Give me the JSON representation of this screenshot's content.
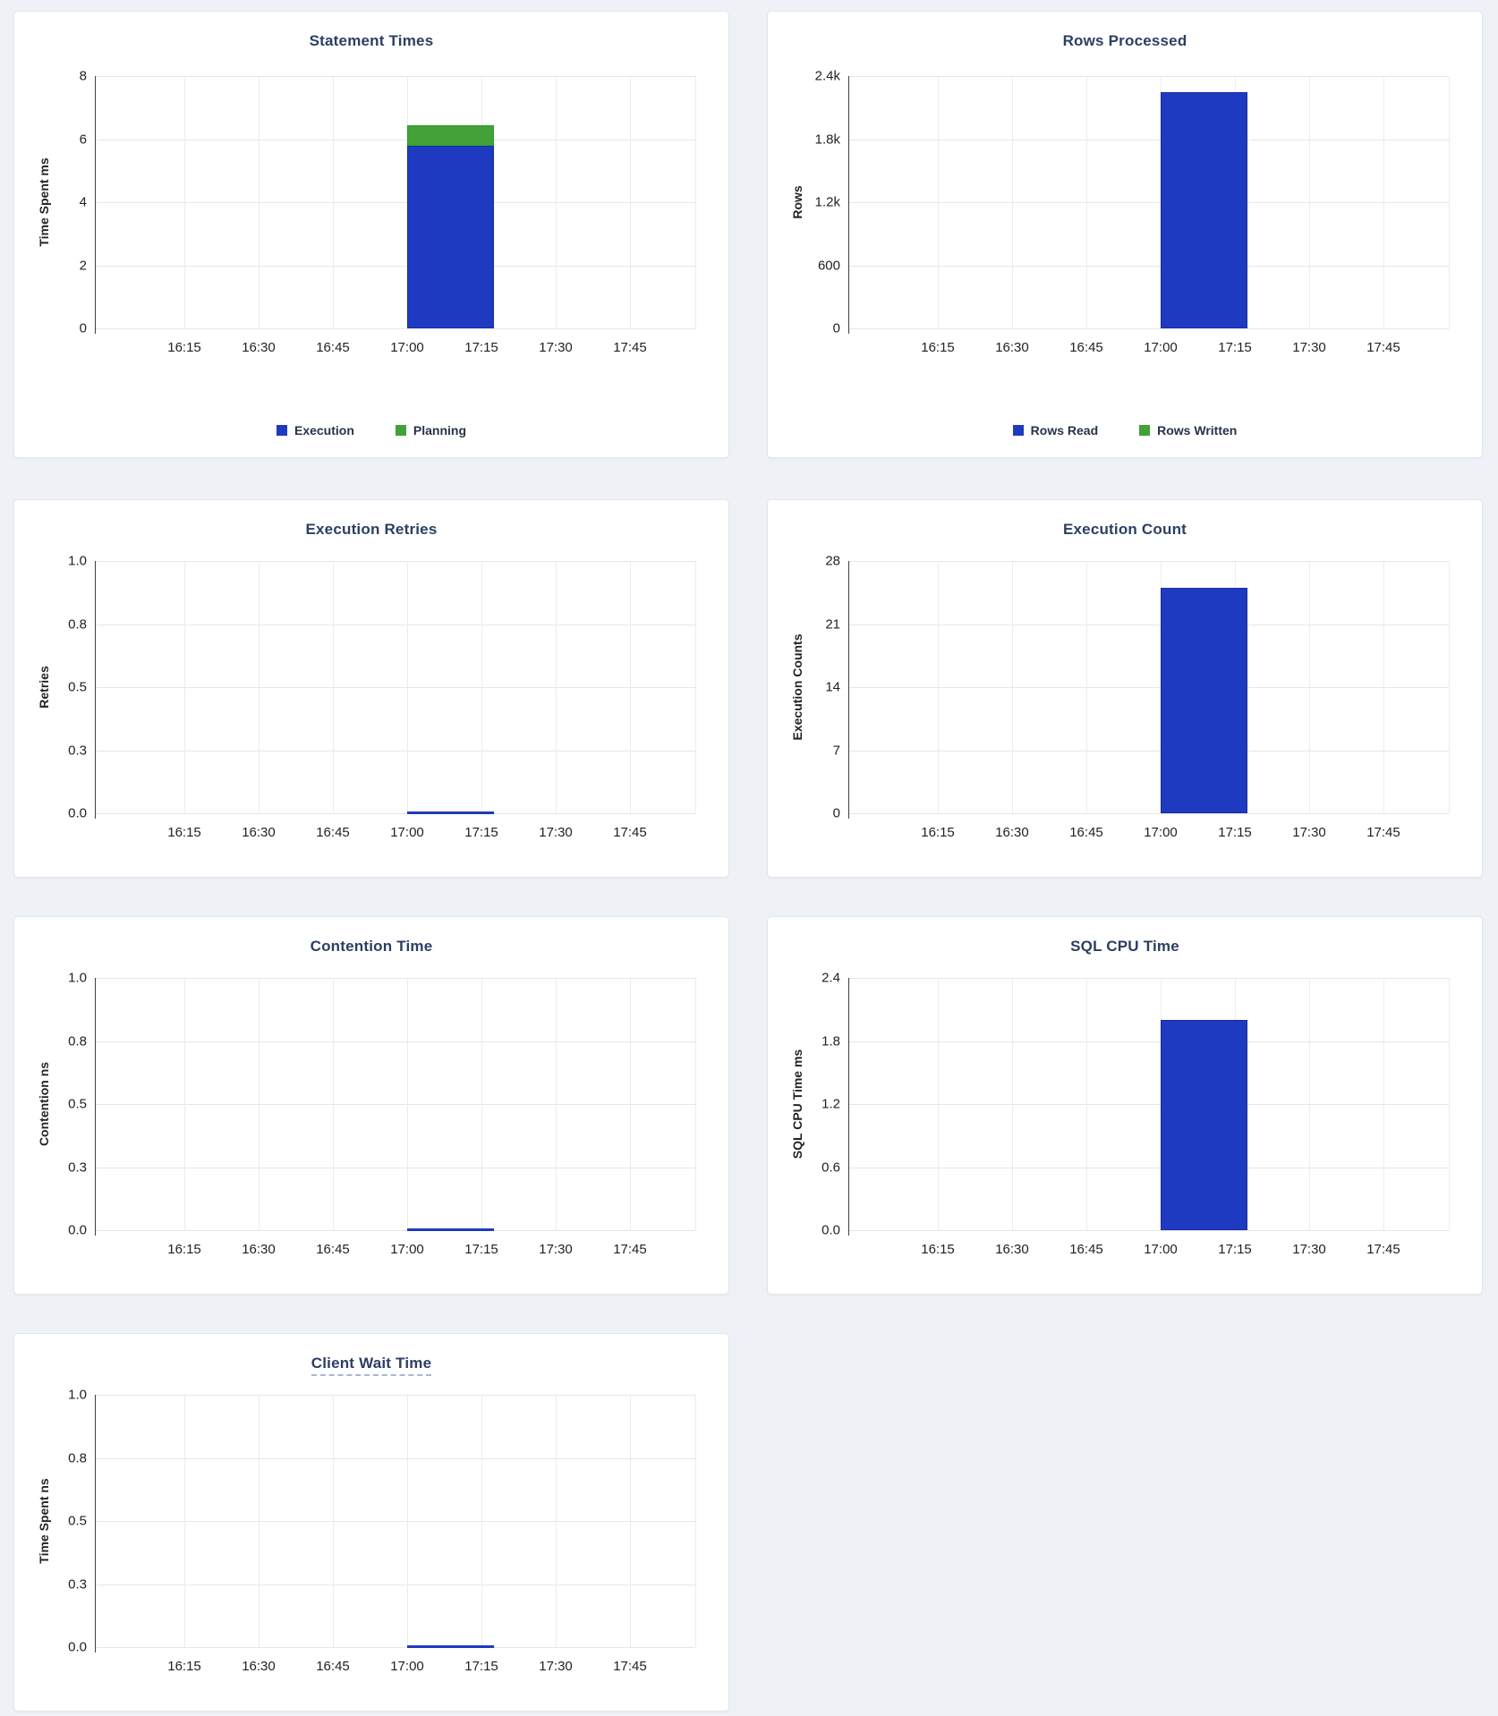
{
  "colors": {
    "page_background": "#eef2f6",
    "bar_blue": "#1e3ac1",
    "bar_blue_stroke": "#162f9c",
    "bar_green": "#42a139",
    "bar_green_stroke": "#2f9a2e",
    "title_text": "#2c3e63",
    "title_underline": "#a9b7d2",
    "tick_text": "#212226",
    "gridline": "#e7e7e7",
    "axis_line": "#3f3f3f"
  },
  "x_axis": {
    "labels": [
      "16:15",
      "16:30",
      "16:45",
      "17:00",
      "17:15",
      "17:30",
      "17:45"
    ]
  },
  "charts": [
    {
      "title": "Statement Times",
      "y_label": "Time Spent ms",
      "y_max": 8,
      "y_ticks": [
        "8",
        "6",
        "4",
        "2",
        "0"
      ],
      "legend": [
        {
          "label": "Execution",
          "color": "blue"
        },
        {
          "label": "Planning",
          "color": "green"
        }
      ],
      "bars": [
        {
          "name": "Execution",
          "color": "blue",
          "value": 5.8
        },
        {
          "name": "Planning",
          "color": "green",
          "value": 0.65
        }
      ]
    },
    {
      "title": "Rows Processed",
      "y_label": "Rows",
      "y_max": 2400,
      "y_ticks": [
        "2.4k",
        "1.8k",
        "1.2k",
        "600",
        "0"
      ],
      "legend": [
        {
          "label": "Rows Read",
          "color": "blue"
        },
        {
          "label": "Rows Written",
          "color": "green"
        }
      ],
      "bars": [
        {
          "name": "Rows Read",
          "color": "blue",
          "value": 2250
        },
        {
          "name": "Rows Written",
          "color": "green",
          "value": 0
        }
      ]
    },
    {
      "title": "Execution Retries",
      "y_label": "Retries",
      "y_max": 1,
      "y_ticks": [
        "1.0",
        "0.8",
        "0.5",
        "0.3",
        "0.0"
      ],
      "legend": [],
      "bars": [
        {
          "name": "Retries",
          "color": "blue",
          "value": 0
        }
      ]
    },
    {
      "title": "Execution Count",
      "y_label": "Execution Counts",
      "y_max": 28,
      "y_ticks": [
        "28",
        "21",
        "14",
        "7",
        "0"
      ],
      "legend": [],
      "bars": [
        {
          "name": "Execution Count",
          "color": "blue",
          "value": 25
        }
      ]
    },
    {
      "title": "Contention Time",
      "y_label": "Contention ns",
      "y_max": 1,
      "y_ticks": [
        "1.0",
        "0.8",
        "0.5",
        "0.3",
        "0.0"
      ],
      "legend": [],
      "bars": [
        {
          "name": "Contention Time",
          "color": "blue",
          "value": 0
        }
      ]
    },
    {
      "title": "SQL CPU Time",
      "y_label": "SQL CPU Time ms",
      "y_max": 2.4,
      "y_ticks": [
        "2.4",
        "1.8",
        "1.2",
        "0.6",
        "0.0"
      ],
      "legend": [],
      "bars": [
        {
          "name": "SQL CPU Time",
          "color": "blue",
          "value": 2.0
        }
      ]
    },
    {
      "title": "Client Wait Time",
      "underlined_title": true,
      "y_label": "Time Spent ns",
      "y_max": 1,
      "y_ticks": [
        "1.0",
        "0.8",
        "0.5",
        "0.3",
        "0.0"
      ],
      "legend": [],
      "bars": [
        {
          "name": "Client Wait Time",
          "color": "blue",
          "value": 0
        }
      ]
    }
  ],
  "chart_data": [
    {
      "type": "bar",
      "title": "Statement Times",
      "ylabel": "Time Spent ms",
      "ylim": [
        0,
        8
      ],
      "x_ticks": [
        "16:15",
        "16:30",
        "16:45",
        "17:00",
        "17:15",
        "17:30",
        "17:45"
      ],
      "stacked": true,
      "legend_position": "bottom",
      "series": [
        {
          "name": "Execution",
          "x": "17:00",
          "value": 5.8
        },
        {
          "name": "Planning",
          "x": "17:00",
          "value": 0.65
        }
      ]
    },
    {
      "type": "bar",
      "title": "Rows Processed",
      "ylabel": "Rows",
      "ylim": [
        0,
        2400
      ],
      "x_ticks": [
        "16:15",
        "16:30",
        "16:45",
        "17:00",
        "17:15",
        "17:30",
        "17:45"
      ],
      "legend_position": "bottom",
      "series": [
        {
          "name": "Rows Read",
          "x": "17:00",
          "value": 2250
        },
        {
          "name": "Rows Written",
          "x": "17:00",
          "value": 0
        }
      ]
    },
    {
      "type": "bar",
      "title": "Execution Retries",
      "ylabel": "Retries",
      "ylim": [
        0,
        1
      ],
      "x_ticks": [
        "16:15",
        "16:30",
        "16:45",
        "17:00",
        "17:15",
        "17:30",
        "17:45"
      ],
      "series": [
        {
          "name": "Retries",
          "x": "17:00",
          "value": 0
        }
      ]
    },
    {
      "type": "bar",
      "title": "Execution Count",
      "ylabel": "Execution Counts",
      "ylim": [
        0,
        28
      ],
      "x_ticks": [
        "16:15",
        "16:30",
        "16:45",
        "17:00",
        "17:15",
        "17:30",
        "17:45"
      ],
      "series": [
        {
          "name": "Execution Count",
          "x": "17:00",
          "value": 25
        }
      ]
    },
    {
      "type": "bar",
      "title": "Contention Time",
      "ylabel": "Contention ns",
      "ylim": [
        0,
        1
      ],
      "x_ticks": [
        "16:15",
        "16:30",
        "16:45",
        "17:00",
        "17:15",
        "17:30",
        "17:45"
      ],
      "series": [
        {
          "name": "Contention Time",
          "x": "17:00",
          "value": 0
        }
      ]
    },
    {
      "type": "bar",
      "title": "SQL CPU Time",
      "ylabel": "SQL CPU Time ms",
      "ylim": [
        0,
        2.4
      ],
      "x_ticks": [
        "16:15",
        "16:30",
        "16:45",
        "17:00",
        "17:15",
        "17:30",
        "17:45"
      ],
      "series": [
        {
          "name": "SQL CPU Time",
          "x": "17:00",
          "value": 2.0
        }
      ]
    },
    {
      "type": "bar",
      "title": "Client Wait Time",
      "ylabel": "Time Spent ns",
      "ylim": [
        0,
        1
      ],
      "x_ticks": [
        "16:15",
        "16:30",
        "16:45",
        "17:00",
        "17:15",
        "17:30",
        "17:45"
      ],
      "series": [
        {
          "name": "Client Wait Time",
          "x": "17:00",
          "value": 0
        }
      ]
    }
  ]
}
